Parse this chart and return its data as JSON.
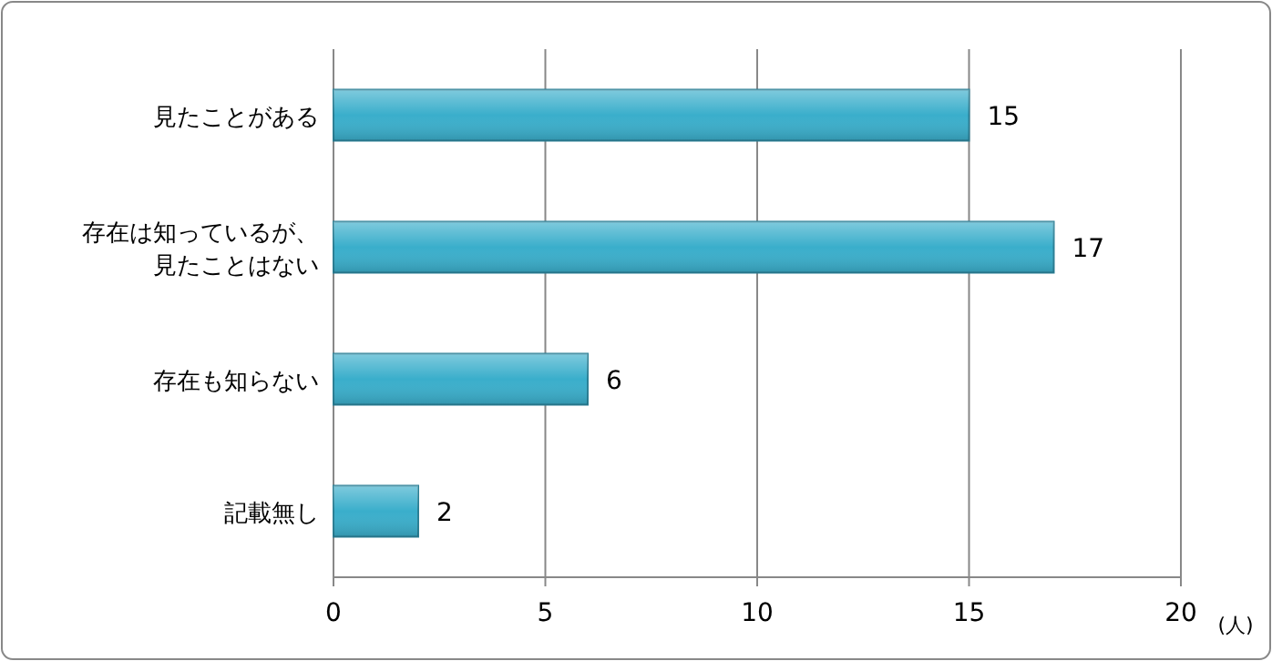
{
  "chart_data": {
    "type": "bar",
    "orientation": "horizontal",
    "categories": [
      "見たことがある",
      "存在は知っているが、見たことはない",
      "存在も知らない",
      "記載無し"
    ],
    "values": [
      15,
      17,
      6,
      2
    ],
    "color": "#3aaecb",
    "xlim": [
      0,
      20
    ],
    "xticks": [
      0,
      5,
      10,
      15,
      20
    ],
    "xlabel": "(人)",
    "grid": "x",
    "data_labels": true
  }
}
